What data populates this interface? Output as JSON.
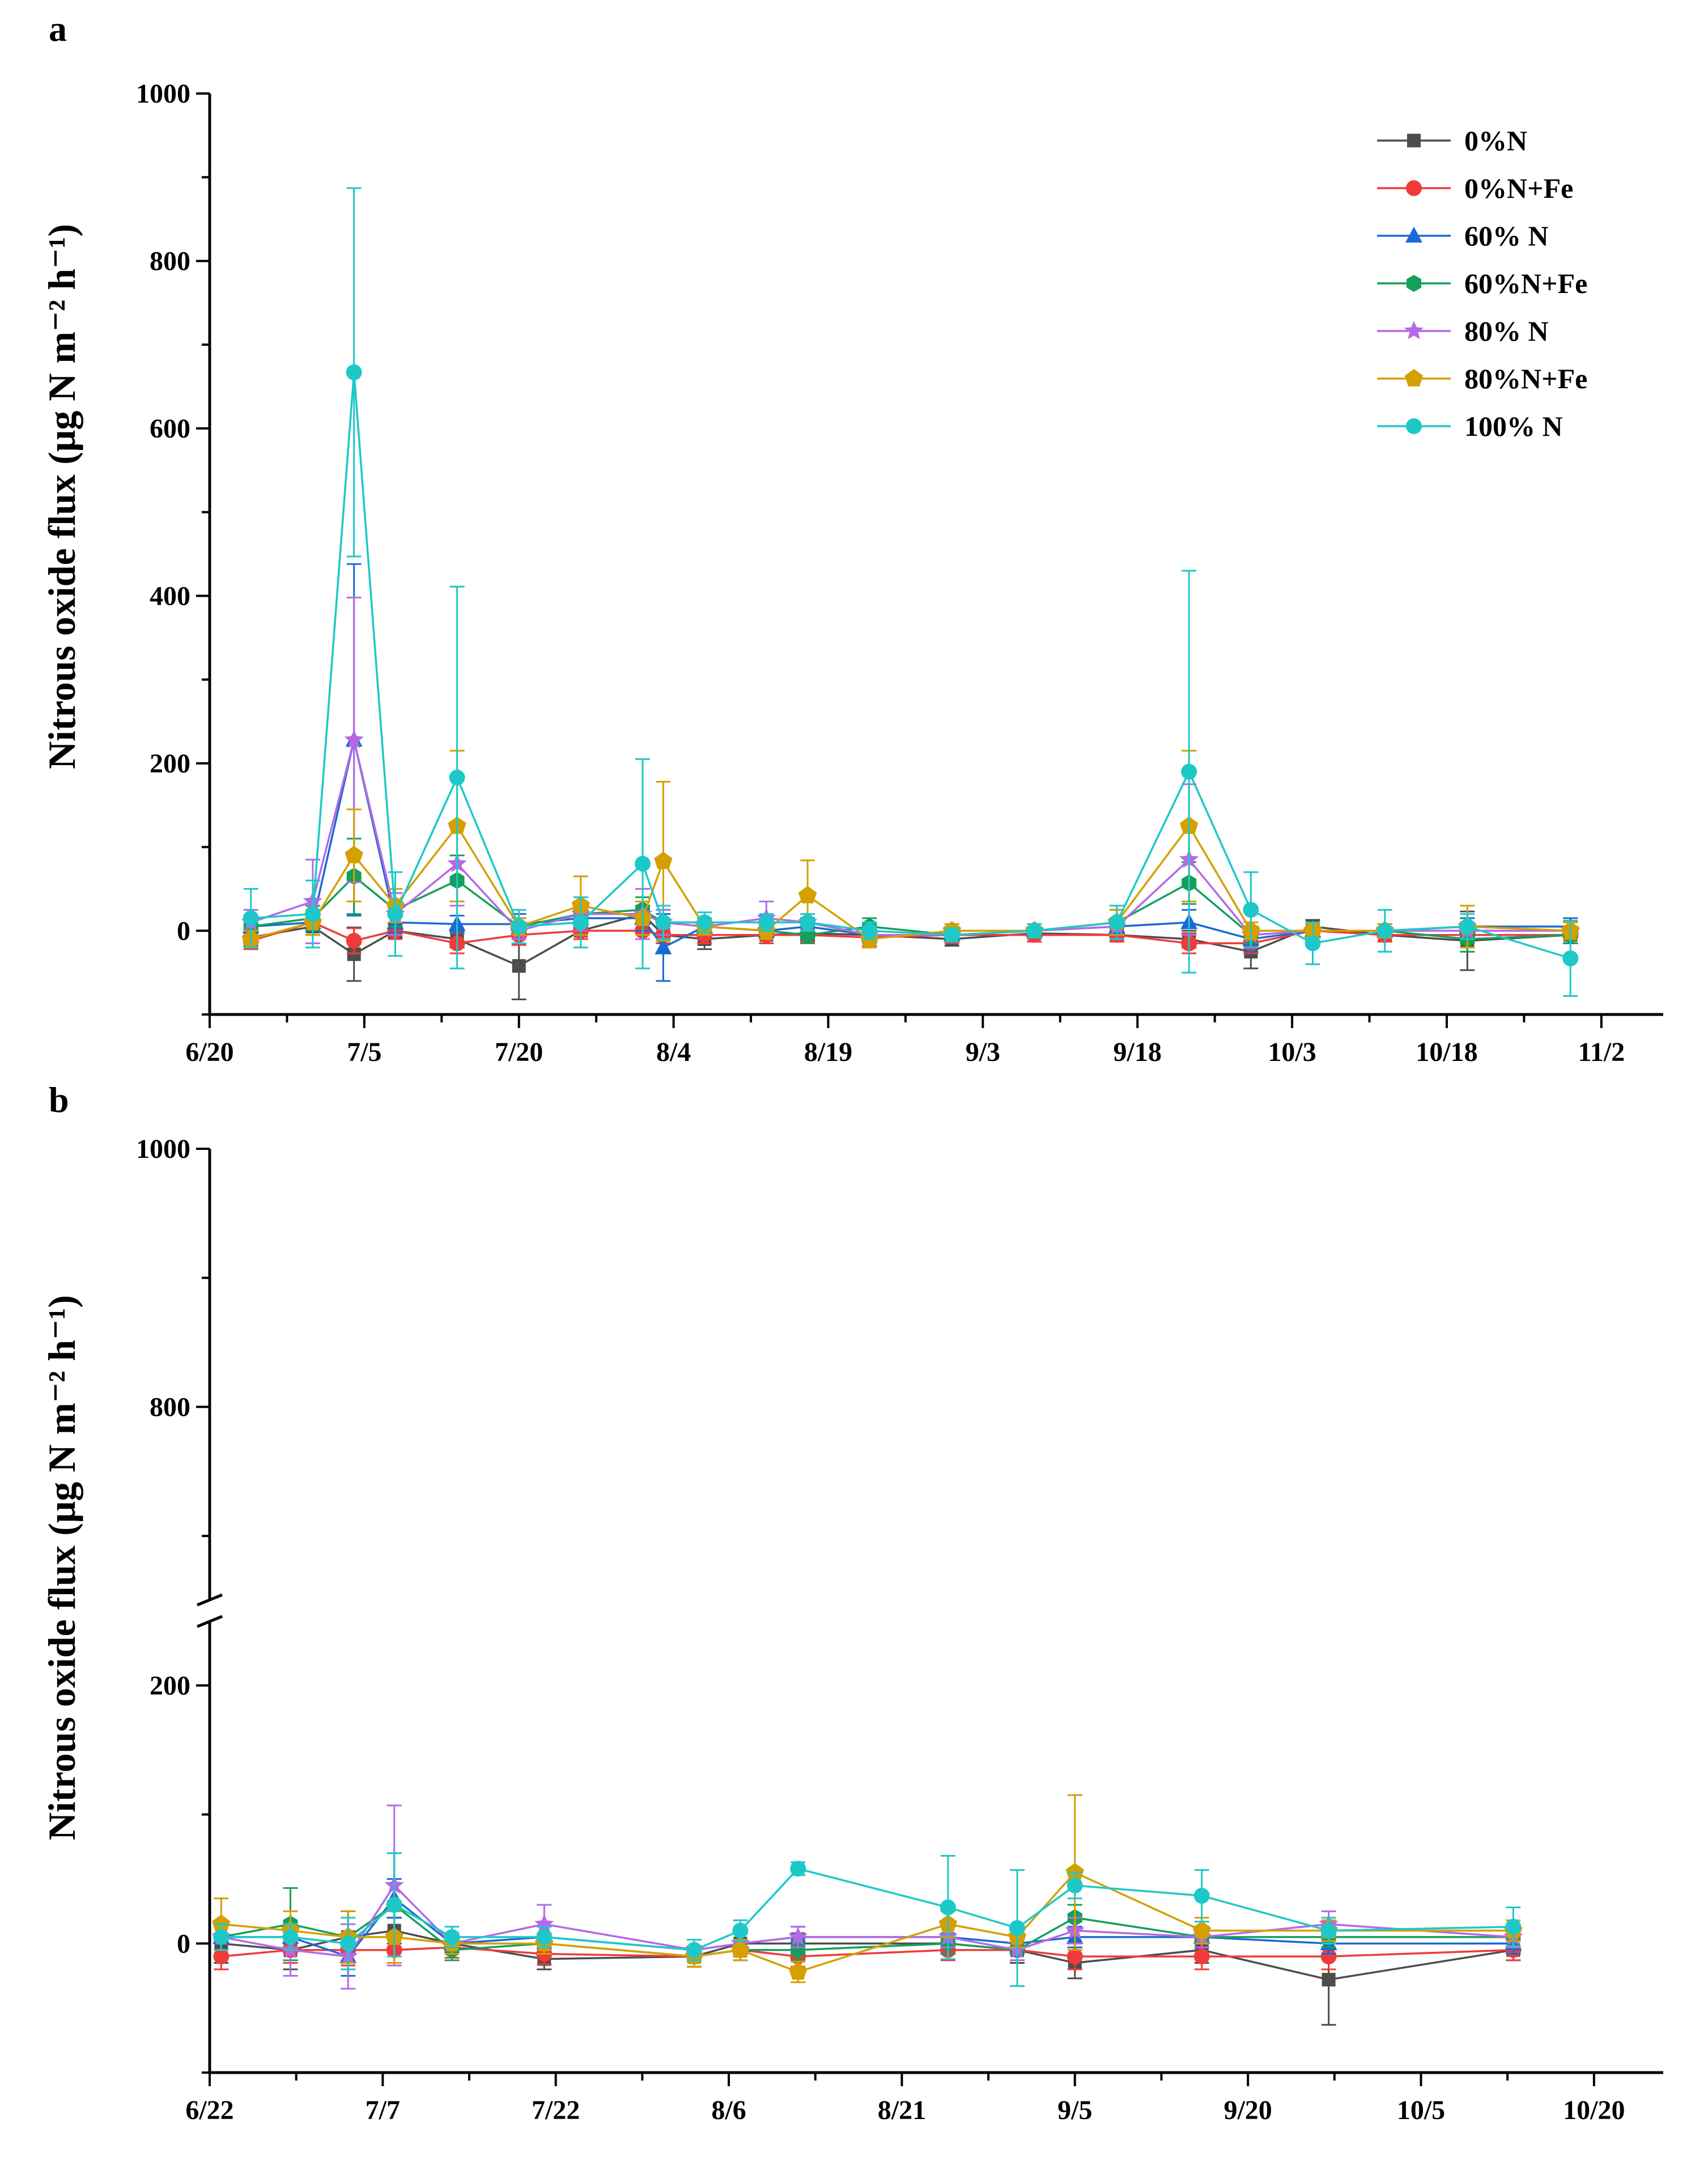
{
  "chart_data": [
    {
      "panel_label": "a",
      "type": "line",
      "ylabel": "Nitrous oxide flux (μg N m⁻² h⁻¹)",
      "ylim": [
        -100,
        1000
      ],
      "yticks": [
        "0",
        "200",
        "400",
        "600",
        "800",
        "1000"
      ],
      "x_axis": "date",
      "xlim": [
        "6/20",
        "11/8"
      ],
      "xtick_labels": [
        "6/20",
        "7/5",
        "7/20",
        "8/4",
        "8/19",
        "9/3",
        "9/18",
        "10/3",
        "10/18",
        "11/2"
      ],
      "x": [
        "6/24",
        "6/30",
        "7/4",
        "7/8",
        "7/14",
        "7/20",
        "7/26",
        "8/1",
        "8/3",
        "8/7",
        "8/13",
        "8/17",
        "8/23",
        "8/31",
        "9/8",
        "9/16",
        "9/23",
        "9/29",
        "10/5",
        "10/12",
        "10/20",
        "10/30"
      ],
      "legend": {
        "position": "top-right"
      },
      "grid": false,
      "series": [
        {
          "name": "0%N",
          "color": "#4d4d4d",
          "marker": "square",
          "values": [
            -8,
            5,
            -28,
            0,
            -10,
            -42,
            0,
            20,
            -5,
            -10,
            -5,
            -3,
            -5,
            -10,
            -3,
            -5,
            -10,
            -25,
            5,
            -5,
            -12,
            -5
          ],
          "errors": [
            10,
            10,
            32,
            8,
            10,
            40,
            10,
            10,
            10,
            12,
            10,
            8,
            8,
            8,
            6,
            8,
            10,
            20,
            8,
            8,
            35,
            10
          ]
        },
        {
          "name": "0%N+Fe",
          "color": "#ef3b3b",
          "marker": "circle",
          "values": [
            -12,
            10,
            -12,
            0,
            -15,
            -5,
            0,
            0,
            -5,
            -5,
            -5,
            -5,
            -8,
            -5,
            -5,
            -5,
            -15,
            -15,
            0,
            -5,
            -5,
            -5
          ],
          "errors": [
            10,
            10,
            15,
            10,
            12,
            12,
            10,
            10,
            10,
            10,
            10,
            8,
            10,
            10,
            8,
            8,
            12,
            12,
            8,
            8,
            10,
            10
          ]
        },
        {
          "name": "60% N",
          "color": "#1a6ad4",
          "marker": "triangle",
          "values": [
            5,
            10,
            228,
            10,
            8,
            8,
            15,
            15,
            -20,
            5,
            0,
            5,
            -5,
            -5,
            0,
            5,
            10,
            -10,
            0,
            0,
            5,
            5
          ],
          "errors": [
            10,
            10,
            210,
            12,
            10,
            12,
            10,
            15,
            40,
            10,
            10,
            10,
            10,
            8,
            8,
            8,
            15,
            15,
            8,
            8,
            10,
            10
          ]
        },
        {
          "name": "60%N+Fe",
          "color": "#12a05a",
          "marker": "hexagon",
          "values": [
            5,
            15,
            65,
            25,
            60,
            5,
            20,
            25,
            10,
            5,
            0,
            -5,
            5,
            -5,
            0,
            10,
            57,
            -5,
            0,
            0,
            -10,
            -5
          ],
          "errors": [
            12,
            15,
            45,
            20,
            30,
            10,
            15,
            15,
            15,
            10,
            10,
            10,
            10,
            8,
            8,
            15,
            25,
            10,
            8,
            8,
            15,
            10
          ]
        },
        {
          "name": "80% N",
          "color": "#b569e6",
          "marker": "star",
          "values": [
            10,
            35,
            228,
            20,
            80,
            0,
            20,
            20,
            10,
            5,
            15,
            10,
            -5,
            -5,
            0,
            5,
            85,
            -5,
            0,
            0,
            0,
            0
          ],
          "errors": [
            15,
            50,
            170,
            25,
            50,
            10,
            20,
            30,
            15,
            10,
            20,
            10,
            10,
            8,
            8,
            10,
            90,
            15,
            8,
            8,
            10,
            10
          ]
        },
        {
          "name": "80%N+Fe",
          "color": "#d4a000",
          "marker": "pentagon",
          "values": [
            -10,
            10,
            90,
            30,
            125,
            5,
            30,
            15,
            83,
            5,
            0,
            42,
            -10,
            0,
            0,
            10,
            125,
            0,
            0,
            0,
            5,
            0
          ],
          "errors": [
            10,
            15,
            55,
            20,
            90,
            10,
            35,
            20,
            95,
            10,
            10,
            42,
            10,
            8,
            8,
            15,
            90,
            10,
            8,
            8,
            25,
            10
          ]
        },
        {
          "name": "100% N",
          "color": "#1ec8c8",
          "marker": "circle",
          "values": [
            15,
            20,
            667,
            20,
            183,
            5,
            10,
            80,
            10,
            10,
            10,
            10,
            0,
            -5,
            0,
            10,
            190,
            25,
            -15,
            0,
            5,
            -33
          ],
          "errors": [
            35,
            40,
            220,
            50,
            228,
            20,
            30,
            125,
            20,
            12,
            10,
            10,
            10,
            8,
            8,
            20,
            240,
            45,
            25,
            25,
            15,
            45
          ]
        }
      ]
    },
    {
      "panel_label": "b",
      "type": "line",
      "ylabel": "Nitrous oxide flux (μg N m⁻² h⁻¹)",
      "ylim": [
        -100,
        1000
      ],
      "y_axis_break": [
        250,
        650
      ],
      "yticks": [
        "0",
        "200",
        "800",
        "1000"
      ],
      "x_axis": "date",
      "xlim": [
        "6/22",
        "10/26"
      ],
      "xtick_labels": [
        "6/22",
        "7/7",
        "7/22",
        "8/6",
        "8/21",
        "9/5",
        "9/20",
        "10/5",
        "10/20"
      ],
      "x": [
        "6/23",
        "6/29",
        "7/4",
        "7/8",
        "7/13",
        "7/21",
        "8/3",
        "8/7",
        "8/12",
        "8/25",
        "8/31",
        "9/5",
        "9/16",
        "9/27",
        "10/13"
      ],
      "legend": {
        "position": "none"
      },
      "grid": false,
      "series": [
        {
          "name": "0%N",
          "color": "#4d4d4d",
          "marker": "square",
          "values": [
            0,
            -5,
            5,
            10,
            0,
            -12,
            -10,
            0,
            0,
            0,
            -5,
            -15,
            -5,
            -28,
            -5
          ],
          "errors": [
            15,
            15,
            20,
            10,
            8,
            8,
            8,
            8,
            8,
            8,
            10,
            12,
            10,
            35,
            8
          ]
        },
        {
          "name": "0%N+Fe",
          "color": "#ef3b3b",
          "marker": "circle",
          "values": [
            -10,
            -5,
            -5,
            -5,
            -3,
            -8,
            -10,
            -5,
            -10,
            -5,
            -5,
            -10,
            -10,
            -10,
            -5
          ],
          "errors": [
            10,
            10,
            12,
            10,
            8,
            8,
            8,
            8,
            8,
            8,
            8,
            10,
            10,
            10,
            8
          ]
        },
        {
          "name": "60% N",
          "color": "#1a6ad4",
          "marker": "triangle",
          "values": [
            5,
            5,
            -10,
            35,
            0,
            5,
            -5,
            0,
            5,
            5,
            0,
            5,
            5,
            0,
            0
          ],
          "errors": [
            10,
            10,
            15,
            15,
            8,
            8,
            8,
            8,
            8,
            8,
            8,
            8,
            8,
            8,
            8
          ]
        },
        {
          "name": "60%N+Fe",
          "color": "#12a05a",
          "marker": "hexagon",
          "values": [
            5,
            15,
            5,
            30,
            -5,
            0,
            -10,
            -5,
            -5,
            0,
            -5,
            20,
            5,
            5,
            5
          ],
          "errors": [
            10,
            28,
            20,
            40,
            8,
            8,
            8,
            8,
            8,
            8,
            8,
            10,
            8,
            8,
            8
          ]
        },
        {
          "name": "80% N",
          "color": "#b569e6",
          "marker": "star",
          "values": [
            5,
            -5,
            -10,
            45,
            0,
            15,
            -5,
            0,
            5,
            5,
            -5,
            10,
            5,
            15,
            5
          ],
          "errors": [
            10,
            20,
            25,
            62,
            8,
            15,
            8,
            10,
            8,
            8,
            8,
            10,
            8,
            10,
            8
          ]
        },
        {
          "name": "80%N+Fe",
          "color": "#d4a000",
          "marker": "pentagon",
          "values": [
            15,
            10,
            5,
            5,
            0,
            0,
            -10,
            -5,
            -22,
            15,
            5,
            55,
            10,
            10,
            10
          ],
          "errors": [
            20,
            15,
            20,
            20,
            8,
            8,
            8,
            8,
            8,
            10,
            8,
            60,
            10,
            8,
            8
          ]
        },
        {
          "name": "100% N",
          "color": "#1ec8c8",
          "marker": "circle",
          "values": [
            5,
            5,
            0,
            30,
            5,
            5,
            -5,
            10,
            58,
            28,
            12,
            45,
            37,
            10,
            13
          ],
          "errors": [
            10,
            10,
            20,
            40,
            8,
            8,
            8,
            8,
            5,
            40,
            45,
            10,
            20,
            10,
            15
          ]
        }
      ]
    }
  ]
}
